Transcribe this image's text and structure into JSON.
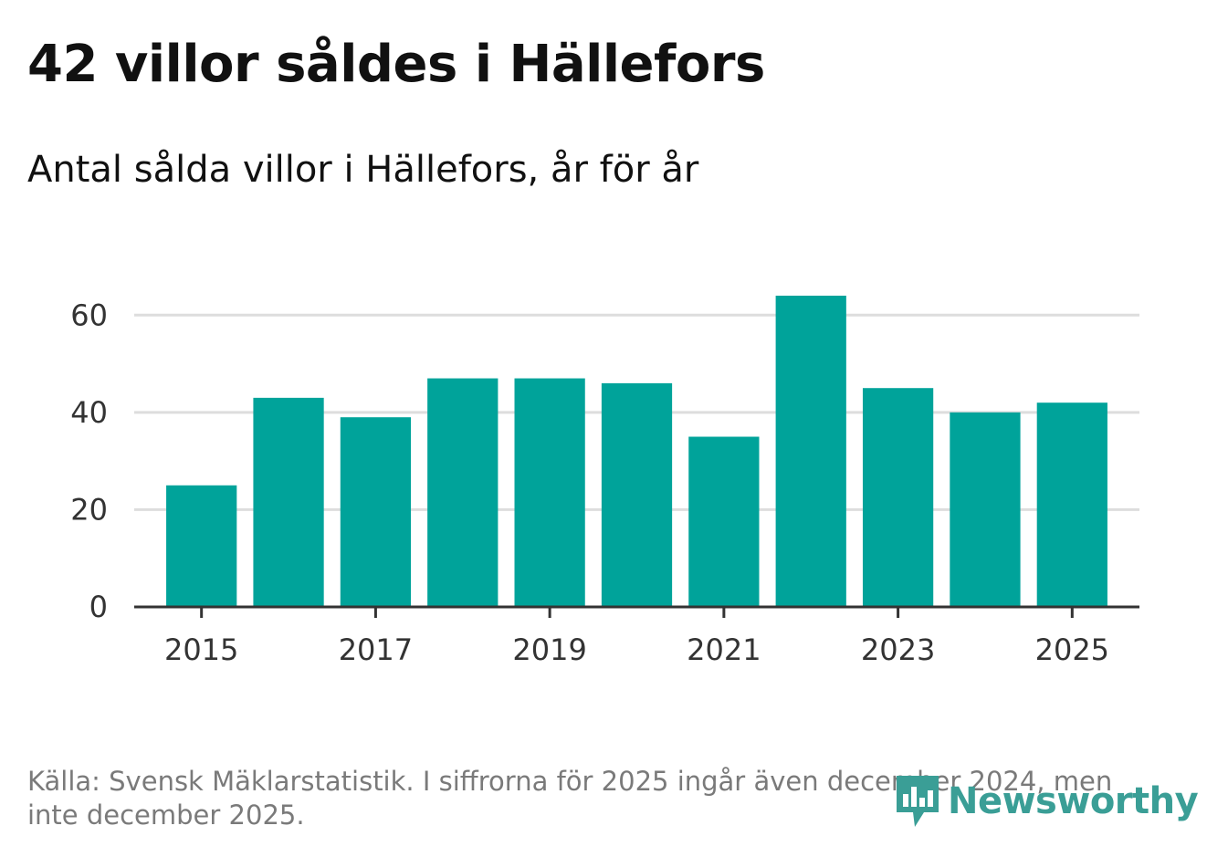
{
  "title": "42 villor såldes i Hällefors",
  "subtitle": "Antal sålda villor i Hällefors, år för år",
  "source": "Källa: Svensk Mäklarstatistik. I siffrorna för 2025 ingår även december 2024, men inte december 2025.",
  "logo": {
    "text": "Newsworthy",
    "icon": "newsworthy-bar-chart-icon"
  },
  "colors": {
    "bar": "#00a39a",
    "grid": "#dddddd",
    "axis": "#333333",
    "logo": "#3a9e96"
  },
  "chart_data": {
    "type": "bar",
    "title": "42 villor såldes i Hällefors",
    "subtitle": "Antal sålda villor i Hällefors, år för år",
    "xlabel": "",
    "ylabel": "",
    "categories": [
      "2015",
      "2016",
      "2017",
      "2018",
      "2019",
      "2020",
      "2021",
      "2022",
      "2023",
      "2024",
      "2025"
    ],
    "values": [
      25,
      43,
      39,
      47,
      47,
      46,
      35,
      64,
      45,
      40,
      42
    ],
    "ylim": [
      0,
      70
    ],
    "yticks": [
      0,
      20,
      40,
      60
    ],
    "xtick_labels": [
      "2015",
      "2017",
      "2019",
      "2021",
      "2023",
      "2025"
    ],
    "grid": true,
    "legend": "none"
  }
}
